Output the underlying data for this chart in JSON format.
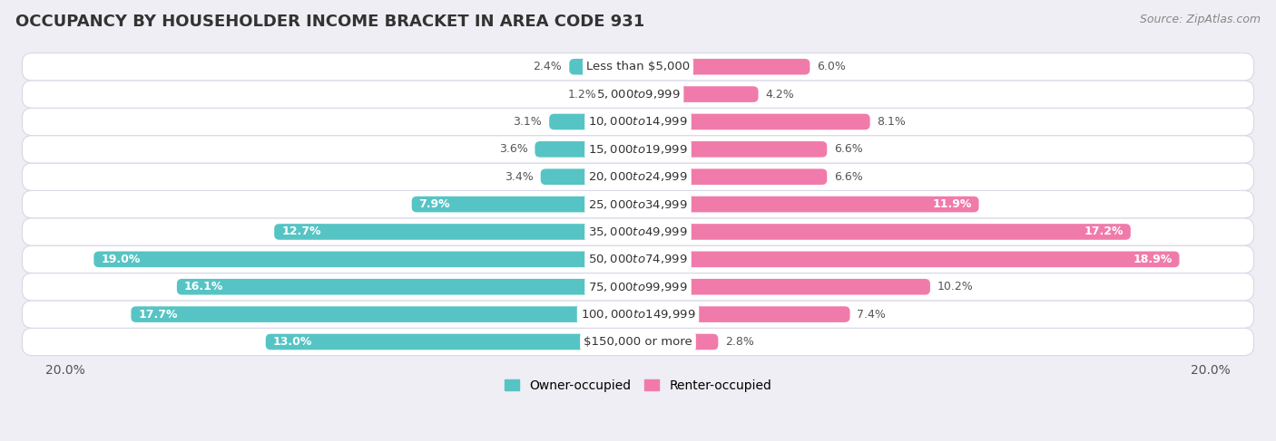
{
  "title": "OCCUPANCY BY HOUSEHOLDER INCOME BRACKET IN AREA CODE 931",
  "source": "Source: ZipAtlas.com",
  "categories": [
    "Less than $5,000",
    "$5,000 to $9,999",
    "$10,000 to $14,999",
    "$15,000 to $19,999",
    "$20,000 to $24,999",
    "$25,000 to $34,999",
    "$35,000 to $49,999",
    "$50,000 to $74,999",
    "$75,000 to $99,999",
    "$100,000 to $149,999",
    "$150,000 or more"
  ],
  "owner_values": [
    2.4,
    1.2,
    3.1,
    3.6,
    3.4,
    7.9,
    12.7,
    19.0,
    16.1,
    17.7,
    13.0
  ],
  "renter_values": [
    6.0,
    4.2,
    8.1,
    6.6,
    6.6,
    11.9,
    17.2,
    18.9,
    10.2,
    7.4,
    2.8
  ],
  "owner_color": "#56C4C4",
  "renter_color": "#F07BAA",
  "background_color": "#eeeef4",
  "row_bg_color": "#ffffff",
  "row_border_color": "#d8d8e8",
  "axis_limit": 20.0,
  "bar_height": 0.58,
  "title_fontsize": 13,
  "label_fontsize": 9,
  "category_fontsize": 9.5,
  "source_fontsize": 9,
  "legend_fontsize": 10,
  "inside_label_threshold_owner": 7.9,
  "inside_label_threshold_renter": 11.9
}
